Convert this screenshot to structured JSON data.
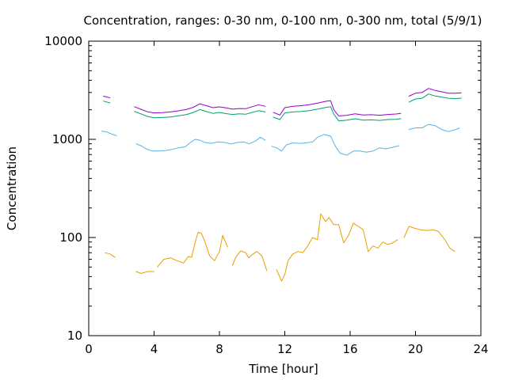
{
  "chart_data": {
    "type": "line",
    "title": "Concentration, ranges: 0-30 nm, 0-100 nm, 0-300 nm, total (5/9/1)",
    "xlabel": "Time [hour]",
    "ylabel": "Concentration",
    "xlim": [
      0,
      24
    ],
    "ylim": [
      10,
      10000
    ],
    "yscale": "log",
    "grid": false,
    "xticks": [
      "0",
      "4",
      "8",
      "12",
      "16",
      "20",
      "24"
    ],
    "yticks": [
      "10",
      "100",
      "1000",
      "10000"
    ],
    "series": [
      {
        "color": "#e69f00",
        "segments": [
          [
            [
              1.0,
              70
            ],
            [
              1.3,
              68
            ],
            [
              1.6,
              63
            ]
          ],
          [
            [
              2.9,
              45
            ],
            [
              3.2,
              43
            ],
            [
              3.6,
              45
            ],
            [
              4.0,
              45
            ]
          ],
          [
            [
              4.2,
              50
            ],
            [
              4.6,
              60
            ],
            [
              5.0,
              62
            ],
            [
              5.4,
              58
            ],
            [
              5.8,
              55
            ],
            [
              6.1,
              64
            ],
            [
              6.3,
              63
            ],
            [
              6.5,
              88
            ],
            [
              6.7,
              113
            ],
            [
              6.9,
              110
            ],
            [
              7.1,
              92
            ],
            [
              7.4,
              65
            ],
            [
              7.7,
              58
            ],
            [
              8.0,
              72
            ],
            [
              8.2,
              105
            ],
            [
              8.5,
              80
            ]
          ],
          [
            [
              8.8,
              52
            ],
            [
              9.0,
              63
            ],
            [
              9.3,
              73
            ],
            [
              9.6,
              70
            ],
            [
              9.8,
              62
            ],
            [
              10.0,
              67
            ],
            [
              10.3,
              72
            ],
            [
              10.6,
              65
            ],
            [
              10.9,
              46
            ]
          ],
          [
            [
              11.5,
              47
            ],
            [
              11.8,
              36
            ],
            [
              12.0,
              42
            ],
            [
              12.2,
              58
            ],
            [
              12.5,
              68
            ],
            [
              12.8,
              72
            ],
            [
              13.1,
              70
            ],
            [
              13.4,
              82
            ],
            [
              13.7,
              100
            ],
            [
              14.0,
              95
            ],
            [
              14.2,
              175
            ],
            [
              14.5,
              145
            ],
            [
              14.7,
              160
            ],
            [
              15.0,
              135
            ],
            [
              15.3,
              135
            ],
            [
              15.6,
              88
            ],
            [
              15.9,
              105
            ],
            [
              16.2,
              140
            ],
            [
              16.5,
              130
            ],
            [
              16.8,
              120
            ],
            [
              17.1,
              72
            ],
            [
              17.4,
              82
            ],
            [
              17.7,
              78
            ],
            [
              18.0,
              90
            ],
            [
              18.3,
              85
            ],
            [
              18.6,
              88
            ],
            [
              18.9,
              95
            ]
          ],
          [
            [
              19.3,
              100
            ],
            [
              19.6,
              130
            ],
            [
              19.9,
              125
            ],
            [
              20.3,
              120
            ],
            [
              20.7,
              118
            ],
            [
              21.1,
              120
            ],
            [
              21.4,
              115
            ],
            [
              21.8,
              95
            ],
            [
              22.1,
              78
            ],
            [
              22.4,
              72
            ]
          ]
        ]
      },
      {
        "color": "#56b4e9",
        "segments": [
          [
            [
              0.8,
              1210
            ],
            [
              1.1,
              1190
            ],
            [
              1.4,
              1130
            ],
            [
              1.7,
              1090
            ]
          ],
          [
            [
              2.9,
              900
            ],
            [
              3.2,
              860
            ],
            [
              3.5,
              800
            ],
            [
              3.9,
              760
            ],
            [
              4.3,
              760
            ],
            [
              4.7,
              770
            ],
            [
              5.1,
              790
            ],
            [
              5.5,
              820
            ],
            [
              5.9,
              840
            ],
            [
              6.2,
              920
            ],
            [
              6.5,
              1000
            ],
            [
              6.8,
              980
            ],
            [
              7.1,
              930
            ],
            [
              7.5,
              910
            ],
            [
              7.9,
              940
            ],
            [
              8.3,
              930
            ],
            [
              8.7,
              900
            ],
            [
              9.1,
              930
            ],
            [
              9.5,
              940
            ],
            [
              9.8,
              900
            ],
            [
              10.2,
              960
            ],
            [
              10.5,
              1050
            ],
            [
              10.8,
              980
            ]
          ],
          [
            [
              11.2,
              850
            ],
            [
              11.5,
              820
            ],
            [
              11.8,
              760
            ],
            [
              12.1,
              880
            ],
            [
              12.5,
              920
            ],
            [
              12.9,
              910
            ],
            [
              13.3,
              920
            ],
            [
              13.7,
              940
            ],
            [
              14.0,
              1050
            ],
            [
              14.4,
              1120
            ],
            [
              14.8,
              1080
            ],
            [
              15.1,
              850
            ],
            [
              15.4,
              720
            ],
            [
              15.8,
              690
            ],
            [
              16.2,
              760
            ],
            [
              16.6,
              760
            ],
            [
              17.0,
              740
            ],
            [
              17.4,
              760
            ],
            [
              17.8,
              820
            ],
            [
              18.2,
              800
            ],
            [
              18.6,
              830
            ],
            [
              19.0,
              860
            ]
          ],
          [
            [
              19.6,
              1260
            ],
            [
              20.0,
              1310
            ],
            [
              20.4,
              1310
            ],
            [
              20.8,
              1420
            ],
            [
              21.2,
              1380
            ],
            [
              21.6,
              1260
            ],
            [
              22.0,
              1200
            ],
            [
              22.4,
              1250
            ],
            [
              22.7,
              1300
            ]
          ]
        ]
      },
      {
        "color": "#009e73",
        "segments": [
          [
            [
              0.9,
              2450
            ],
            [
              1.3,
              2350
            ]
          ],
          [
            [
              2.8,
              1920
            ],
            [
              3.2,
              1820
            ],
            [
              3.6,
              1710
            ],
            [
              4.0,
              1660
            ],
            [
              4.5,
              1670
            ],
            [
              5.0,
              1690
            ],
            [
              5.5,
              1740
            ],
            [
              6.0,
              1790
            ],
            [
              6.4,
              1880
            ],
            [
              6.8,
              2010
            ],
            [
              7.2,
              1920
            ],
            [
              7.6,
              1840
            ],
            [
              8.0,
              1880
            ],
            [
              8.4,
              1830
            ],
            [
              8.8,
              1790
            ],
            [
              9.2,
              1820
            ],
            [
              9.6,
              1800
            ],
            [
              10.0,
              1880
            ],
            [
              10.4,
              1960
            ],
            [
              10.8,
              1900
            ]
          ],
          [
            [
              11.3,
              1680
            ],
            [
              11.7,
              1590
            ],
            [
              12.0,
              1860
            ],
            [
              12.5,
              1900
            ],
            [
              13.0,
              1920
            ],
            [
              13.5,
              1960
            ],
            [
              14.0,
              2030
            ],
            [
              14.5,
              2110
            ],
            [
              14.8,
              2150
            ],
            [
              15.0,
              1800
            ],
            [
              15.3,
              1540
            ],
            [
              15.8,
              1570
            ],
            [
              16.3,
              1620
            ],
            [
              16.8,
              1570
            ],
            [
              17.3,
              1580
            ],
            [
              17.8,
              1560
            ],
            [
              18.3,
              1590
            ],
            [
              18.8,
              1600
            ],
            [
              19.1,
              1630
            ]
          ],
          [
            [
              19.6,
              2400
            ],
            [
              20.0,
              2580
            ],
            [
              20.4,
              2620
            ],
            [
              20.8,
              2900
            ],
            [
              21.2,
              2760
            ],
            [
              21.6,
              2700
            ],
            [
              22.0,
              2620
            ],
            [
              22.4,
              2600
            ],
            [
              22.8,
              2620
            ]
          ]
        ]
      },
      {
        "color": "#9400d3",
        "segments": [
          [
            [
              0.9,
              2750
            ],
            [
              1.3,
              2650
            ]
          ],
          [
            [
              2.8,
              2150
            ],
            [
              3.2,
              2020
            ],
            [
              3.6,
              1910
            ],
            [
              4.0,
              1860
            ],
            [
              4.5,
              1870
            ],
            [
              5.0,
              1900
            ],
            [
              5.5,
              1950
            ],
            [
              6.0,
              2020
            ],
            [
              6.4,
              2120
            ],
            [
              6.8,
              2300
            ],
            [
              7.2,
              2200
            ],
            [
              7.6,
              2100
            ],
            [
              8.0,
              2140
            ],
            [
              8.4,
              2090
            ],
            [
              8.8,
              2030
            ],
            [
              9.2,
              2060
            ],
            [
              9.6,
              2050
            ],
            [
              10.0,
              2150
            ],
            [
              10.4,
              2250
            ],
            [
              10.8,
              2170
            ]
          ],
          [
            [
              11.3,
              1880
            ],
            [
              11.7,
              1770
            ],
            [
              12.0,
              2100
            ],
            [
              12.5,
              2170
            ],
            [
              13.0,
              2200
            ],
            [
              13.5,
              2250
            ],
            [
              14.0,
              2340
            ],
            [
              14.5,
              2440
            ],
            [
              14.8,
              2480
            ],
            [
              15.0,
              2000
            ],
            [
              15.3,
              1730
            ],
            [
              15.8,
              1760
            ],
            [
              16.3,
              1820
            ],
            [
              16.8,
              1770
            ],
            [
              17.3,
              1780
            ],
            [
              17.8,
              1760
            ],
            [
              18.3,
              1790
            ],
            [
              18.8,
              1810
            ],
            [
              19.1,
              1840
            ]
          ],
          [
            [
              19.6,
              2750
            ],
            [
              20.0,
              2950
            ],
            [
              20.4,
              3000
            ],
            [
              20.8,
              3300
            ],
            [
              21.2,
              3150
            ],
            [
              21.6,
              3050
            ],
            [
              22.0,
              2950
            ],
            [
              22.4,
              2950
            ],
            [
              22.8,
              2980
            ]
          ]
        ]
      }
    ]
  }
}
